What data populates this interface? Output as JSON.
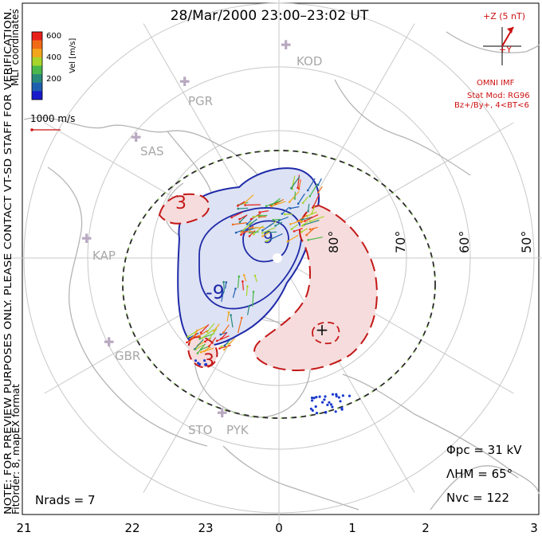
{
  "title": "28/Mar/2000 23:00–23:02 UT",
  "side_note": {
    "line1": "NOTE: FOR PREVIEW PURPOSES ONLY. PLEASE CONTACT VT-SD STAFF FOR VERIFICATION.",
    "line2": "FitOrder: 8, mapEX format"
  },
  "colorbar": {
    "title": "MLT coordinates",
    "unit_label": "Vel [m/s]",
    "ticks": [
      "600",
      "400",
      "200"
    ],
    "colors": [
      "#e8201a",
      "#f06a18",
      "#f4a51c",
      "#a8d42a",
      "#4ab84a",
      "#2a8a7a",
      "#1f5fb0",
      "#1a1acc"
    ]
  },
  "vector_scale": {
    "label": "1000 m/s",
    "color": "#cc1111"
  },
  "imf": {
    "label": "+Z (5 nT)",
    "y_label": "+Y",
    "source": "OMNI IMF",
    "stat_mod": "Stat Mod: RG96",
    "condition": "Bz+/By+, 4<BT<6",
    "color": "#cc1111"
  },
  "stations": [
    "KOD",
    "PGR",
    "SAS",
    "KAP",
    "GBR",
    "STO",
    "PYK"
  ],
  "latitude_labels": [
    "80°",
    "70°",
    "60°",
    "50°"
  ],
  "contours": {
    "negative": "-9",
    "positive1": "3",
    "positive2": "3",
    "center_neg": "9"
  },
  "stats": {
    "phi_pc": "Φpc = 31 kV",
    "lambda_hm": "ΛHM = 65°",
    "n_vc": "Nvc = 122",
    "n_rads": "Nrads = 7"
  },
  "mlt_axis": {
    "labels": [
      "21",
      "22",
      "23",
      "0",
      "1",
      "2",
      "3"
    ]
  },
  "colors": {
    "grid": "#c8c8c8",
    "coast": "#b4b4b4",
    "negative_fill": "#dde2f4",
    "negative_line": "#1f2aa8",
    "positive_fill": "#f6dcdc",
    "positive_line": "#c41818",
    "hm_boundary": "#2a2a2a"
  }
}
